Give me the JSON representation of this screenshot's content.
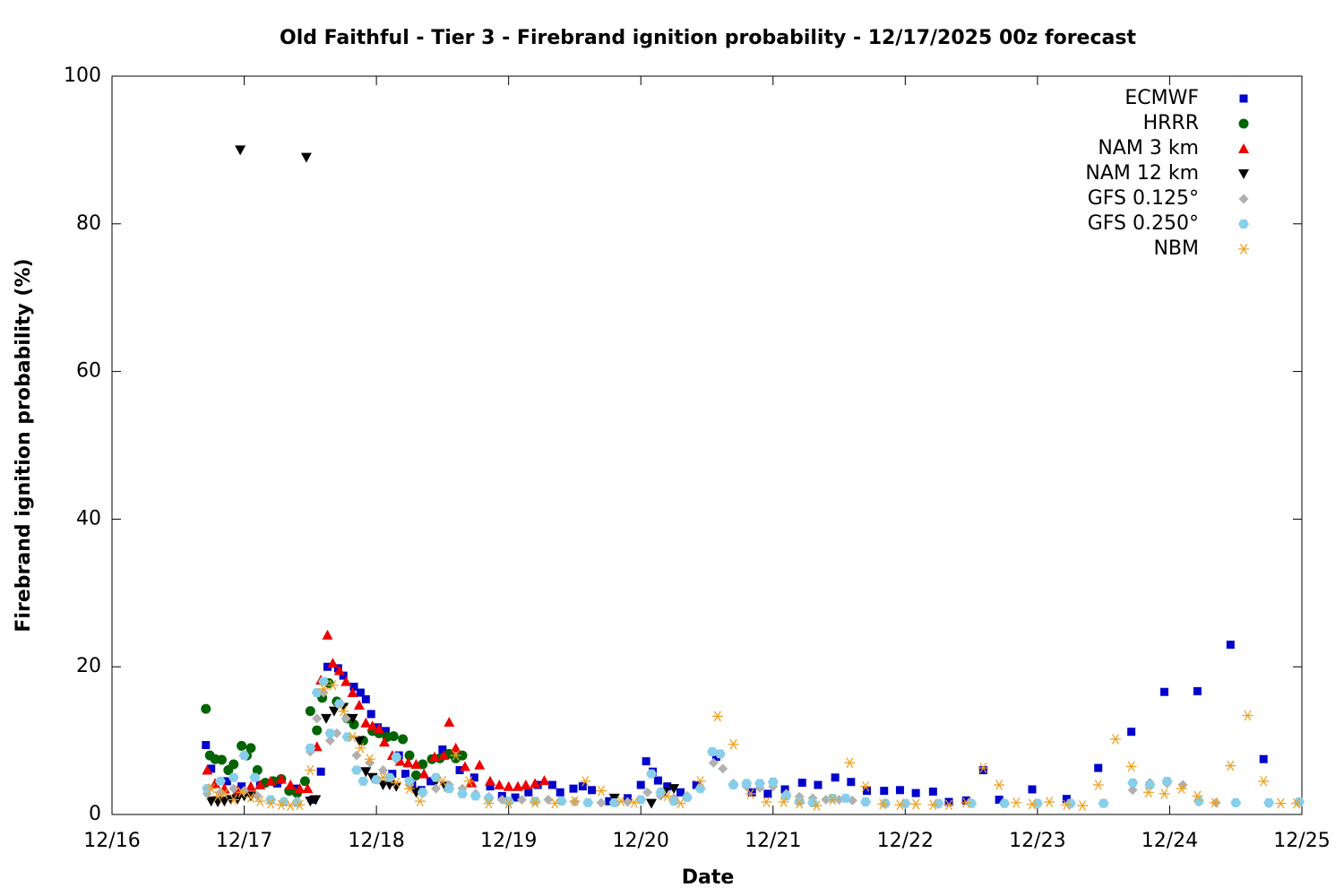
{
  "chart_data": {
    "type": "scatter",
    "title": "Old Faithful - Tier 3 - Firebrand ignition probability - 12/17/2025 00z forecast",
    "x_label": "Date",
    "y_label": "Firebrand ignition probability (%)",
    "xlim": [
      16,
      25
    ],
    "xticks": [
      {
        "value": 16,
        "label": "12/16"
      },
      {
        "value": 17,
        "label": "12/17"
      },
      {
        "value": 18,
        "label": "12/18"
      },
      {
        "value": 19,
        "label": "12/19"
      },
      {
        "value": 20,
        "label": "12/20"
      },
      {
        "value": 21,
        "label": "12/21"
      },
      {
        "value": 22,
        "label": "12/22"
      },
      {
        "value": 23,
        "label": "12/23"
      },
      {
        "value": 24,
        "label": "12/24"
      },
      {
        "value": 25,
        "label": "12/25"
      }
    ],
    "ylim": [
      0,
      100
    ],
    "yticks": [
      0,
      20,
      40,
      60,
      80,
      100
    ],
    "legend": "top-right",
    "series": [
      {
        "name": "ECMWF",
        "color": "#0000cc",
        "marker": "square",
        "x": [
          16.71,
          16.75,
          16.87,
          16.98,
          17.12,
          17.25,
          17.39,
          17.52,
          17.58,
          17.63,
          17.71,
          17.75,
          17.83,
          17.88,
          17.92,
          17.96,
          18.01,
          18.07,
          18.12,
          18.17,
          18.22,
          18.27,
          18.34,
          18.41,
          18.5,
          18.63,
          18.74,
          18.86,
          18.95,
          19.05,
          19.15,
          19.22,
          19.33,
          19.39,
          19.49,
          19.56,
          19.63,
          19.76,
          19.9,
          20.0,
          20.04,
          20.09,
          20.13,
          20.2,
          20.3,
          20.42,
          20.57,
          20.84,
          20.96,
          21.09,
          21.22,
          21.34,
          21.47,
          21.59,
          21.71,
          21.84,
          21.96,
          22.08,
          22.21,
          22.33,
          22.46,
          22.59,
          22.71,
          22.96,
          23.22,
          23.46,
          23.71,
          23.96,
          24.21,
          24.46,
          24.71
        ],
        "values": [
          9.4,
          6.2,
          4.5,
          3.8,
          4,
          4.2,
          3.5,
          2,
          5.8,
          20,
          19.8,
          18.8,
          17.3,
          16.5,
          15.6,
          13.6,
          11.8,
          11.3,
          5.5,
          8,
          5.5,
          4,
          3.3,
          4.5,
          8.8,
          6,
          5,
          3.8,
          2.5,
          2.3,
          3,
          4,
          4,
          3,
          3.5,
          3.8,
          3.3,
          1.8,
          2.2,
          4,
          7.2,
          5.8,
          4.6,
          3.8,
          3,
          4,
          7.8,
          3,
          2.8,
          3.4,
          4.3,
          4,
          5,
          4.4,
          3.2,
          3.2,
          3.3,
          2.9,
          3.1,
          1.7,
          1.9,
          6,
          2,
          3.4,
          2.1,
          6.3,
          11.2,
          16.6,
          16.7,
          23,
          7.5
        ]
      },
      {
        "name": "HRRR",
        "color": "#006400",
        "marker": "circle",
        "x": [
          16.71,
          16.74,
          16.78,
          16.83,
          16.88,
          16.92,
          16.98,
          17.02,
          17.05,
          17.1,
          17.16,
          17.22,
          17.28,
          17.34,
          17.4,
          17.46,
          17.5,
          17.55,
          17.59,
          17.64,
          17.7,
          17.78,
          17.83,
          17.9,
          17.97,
          18.02,
          18.08,
          18.13,
          18.2,
          18.25,
          18.3,
          18.35,
          18.42,
          18.48,
          18.55,
          18.6,
          18.65
        ],
        "values": [
          14.3,
          8,
          7.5,
          7.4,
          6,
          6.8,
          9.3,
          8,
          9,
          6,
          4.3,
          4.5,
          4.8,
          3.2,
          2.9,
          4.5,
          14,
          11.4,
          15.8,
          17.8,
          15.3,
          13,
          12.2,
          10,
          11.3,
          11,
          10.5,
          10.6,
          10.2,
          8,
          5.3,
          6.8,
          7.5,
          7.6,
          8.2,
          7.6,
          8
        ]
      },
      {
        "name": "NAM 3 km",
        "color": "#ee0000",
        "marker": "triangle-up",
        "x": [
          16.72,
          16.78,
          16.85,
          16.95,
          17.05,
          17.12,
          17.2,
          17.28,
          17.35,
          17.42,
          17.48,
          17.55,
          17.58,
          17.63,
          17.67,
          17.72,
          17.77,
          17.82,
          17.87,
          17.92,
          17.97,
          18.02,
          18.06,
          18.12,
          18.18,
          18.24,
          18.3,
          18.36,
          18.44,
          18.51,
          18.55,
          18.6,
          18.67,
          18.72,
          18.78,
          18.86,
          18.93,
          19.0,
          19.07,
          19.13,
          19.2,
          19.27
        ],
        "values": [
          6,
          4.2,
          3.5,
          3.3,
          3.8,
          4,
          4.5,
          4.8,
          4,
          3.5,
          3.5,
          9.2,
          18.2,
          24.3,
          20.5,
          19.5,
          18,
          16.5,
          14.8,
          12.4,
          12,
          11.6,
          9.8,
          8,
          7.2,
          7,
          6.8,
          5.5,
          7.8,
          8,
          12.5,
          9,
          6.5,
          4.3,
          6.7,
          4.5,
          4,
          3.8,
          3.8,
          4,
          4.2,
          4.6
        ]
      },
      {
        "name": "NAM 12 km",
        "color": "#000000",
        "marker": "triangle-down",
        "x": [
          16.75,
          16.8,
          16.85,
          16.9,
          16.95,
          16.97,
          17.0,
          17.05,
          17.47,
          17.5,
          17.54,
          17.62,
          17.68,
          17.75,
          17.82,
          17.87,
          17.92,
          17.97,
          18.05,
          18.1,
          18.15,
          18.3,
          18.45,
          18.52,
          19.8,
          20.08,
          20.18,
          20.25
        ],
        "values": [
          1.8,
          1.7,
          1.8,
          2,
          2.1,
          90,
          2.5,
          2.5,
          89,
          1.8,
          2,
          13,
          14,
          14.5,
          13,
          10,
          5.8,
          5,
          4,
          4,
          3.8,
          3,
          4.5,
          3.8,
          2.2,
          1.5,
          3,
          3.5
        ]
      },
      {
        "name": "GFS 0.125°",
        "color": "#b0b0b0",
        "marker": "diamond",
        "x": [
          16.72,
          16.82,
          16.92,
          17.0,
          17.1,
          17.2,
          17.3,
          17.4,
          17.5,
          17.55,
          17.6,
          17.65,
          17.7,
          17.77,
          17.85,
          17.95,
          18.05,
          18.15,
          18.25,
          18.35,
          18.45,
          18.55,
          18.65,
          18.75,
          18.85,
          18.95,
          19.1,
          19.3,
          19.5,
          19.7,
          19.9,
          20.05,
          20.15,
          20.25,
          20.35,
          20.45,
          20.55,
          20.62,
          20.7,
          20.8,
          20.9,
          21.0,
          21.1,
          21.2,
          21.3,
          21.4,
          21.5,
          21.6,
          21.7,
          21.85,
          22.0,
          22.25,
          22.5,
          22.75,
          23.0,
          23.25,
          23.5,
          23.72,
          23.85,
          23.98,
          24.1,
          24.22,
          24.35,
          24.5,
          24.75,
          24.98
        ],
        "values": [
          2.8,
          3,
          3.5,
          3.2,
          2.5,
          2,
          1.8,
          1.8,
          8.5,
          13,
          16.5,
          10,
          11,
          13,
          8,
          7,
          6,
          7.5,
          4,
          3,
          3.5,
          4,
          3.5,
          2.8,
          2.4,
          2,
          2,
          2,
          1.7,
          1.6,
          1.7,
          3,
          2.5,
          2.2,
          2.5,
          3.5,
          7,
          6.2,
          4.2,
          3.8,
          3.6,
          3.8,
          2.8,
          2.4,
          2.2,
          2,
          2,
          1.9,
          1.7,
          1.5,
          1.4,
          1.4,
          1.5,
          1.5,
          1.5,
          1.4,
          1.5,
          3.3,
          4.3,
          4.2,
          4,
          1.7,
          1.6,
          1.6,
          1.5,
          1.6
        ]
      },
      {
        "name": "GFS 0.250°",
        "color": "#87ceeb",
        "marker": "hexagon",
        "x": [
          16.72,
          16.82,
          16.92,
          17.0,
          17.08,
          17.2,
          17.3,
          17.4,
          17.5,
          17.55,
          17.6,
          17.65,
          17.72,
          17.78,
          17.85,
          17.9,
          18.0,
          18.1,
          18.15,
          18.25,
          18.35,
          18.45,
          18.55,
          18.65,
          18.75,
          18.85,
          19.0,
          19.2,
          19.4,
          19.6,
          19.8,
          20.0,
          20.08,
          20.15,
          20.25,
          20.35,
          20.45,
          20.54,
          20.6,
          20.7,
          20.8,
          20.9,
          21.0,
          21.1,
          21.2,
          21.3,
          21.45,
          21.55,
          21.7,
          21.85,
          22.0,
          22.25,
          22.5,
          22.75,
          23.0,
          23.25,
          23.5,
          23.72,
          23.85,
          23.98,
          24.22,
          24.5,
          24.75,
          24.98
        ],
        "values": [
          3.5,
          4.5,
          5,
          8,
          5,
          2,
          1.7,
          1.6,
          9,
          16.5,
          18,
          11,
          15,
          10.5,
          6,
          4.5,
          4.7,
          5,
          7.8,
          4.5,
          3,
          5,
          3.5,
          2.8,
          2.5,
          2.2,
          1.8,
          1.8,
          1.8,
          1.6,
          1.6,
          2,
          5.5,
          3,
          1.8,
          2.3,
          3.5,
          8.5,
          8.2,
          4,
          4.2,
          4.2,
          4.4,
          2.5,
          1.8,
          1.6,
          2.2,
          2.2,
          1.7,
          1.5,
          1.5,
          1.5,
          1.5,
          1.5,
          1.5,
          1.5,
          1.5,
          4.3,
          4,
          4.5,
          1.8,
          1.6,
          1.6,
          1.7
        ]
      },
      {
        "name": "NBM",
        "color": "#f0a020",
        "marker": "asterisk",
        "x": [
          16.75,
          16.8,
          16.85,
          16.92,
          16.98,
          17.05,
          17.12,
          17.2,
          17.28,
          17.35,
          17.42,
          17.5,
          17.6,
          17.67,
          17.75,
          17.82,
          17.88,
          17.95,
          18.05,
          18.15,
          18.25,
          18.33,
          18.5,
          18.6,
          18.7,
          18.85,
          19.0,
          19.2,
          19.35,
          19.5,
          19.58,
          19.7,
          19.85,
          19.95,
          20.2,
          20.3,
          20.45,
          20.58,
          20.7,
          20.83,
          20.95,
          21.08,
          21.2,
          21.33,
          21.45,
          21.58,
          21.7,
          21.83,
          21.96,
          22.08,
          22.21,
          22.33,
          22.46,
          22.59,
          22.71,
          22.84,
          22.96,
          23.09,
          23.22,
          23.34,
          23.46,
          23.59,
          23.71,
          23.84,
          23.96,
          24.09,
          24.21,
          24.34,
          24.46,
          24.59,
          24.71,
          24.84,
          24.96
        ],
        "values": [
          3.5,
          2.5,
          2.8,
          2,
          3,
          2.3,
          1.8,
          1.5,
          1.3,
          1.2,
          1.3,
          6,
          17,
          17.5,
          14,
          10.5,
          9,
          7.5,
          5,
          4.3,
          3.5,
          1.8,
          4.5,
          8,
          4.5,
          1.5,
          1.5,
          1.6,
          1.5,
          1.8,
          4.5,
          3.2,
          1.8,
          1.6,
          2.5,
          1.5,
          4.5,
          13.3,
          9.5,
          2.8,
          1.7,
          1.7,
          1.5,
          1.2,
          2,
          7,
          3.8,
          1.4,
          1.3,
          1.4,
          1.3,
          1.3,
          1.6,
          6.3,
          4,
          1.6,
          1.4,
          1.7,
          1.3,
          1.2,
          4,
          10.2,
          6.5,
          3,
          2.8,
          3.5,
          2.5,
          1.6,
          6.6,
          13.4,
          4.5,
          1.5,
          1.5
        ]
      }
    ]
  }
}
